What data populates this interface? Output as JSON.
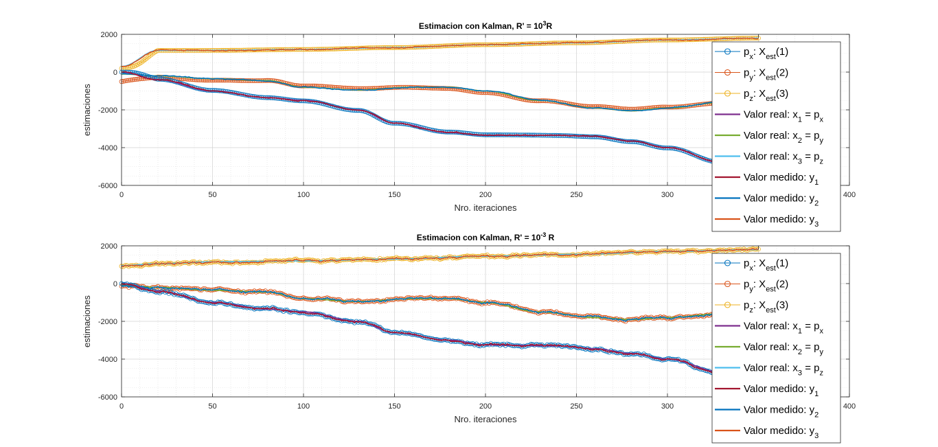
{
  "colors": {
    "c1": "#0072BD",
    "c2": "#D95319",
    "c3": "#EDB120",
    "c4": "#7E2F8E",
    "c5": "#77AC30",
    "c6": "#4DBEEE",
    "c7": "#A2142F"
  },
  "chart_data": [
    {
      "type": "line",
      "title": "Estimacion con Kalman, R' = 10",
      "title_sup": "3",
      "title_suffix": "R",
      "xlabel": "Nro. iteraciones",
      "ylabel": "estimaciones",
      "xlim": [
        0,
        400
      ],
      "ylim": [
        -6000,
        2000
      ],
      "xticks": [
        0,
        50,
        100,
        150,
        200,
        250,
        300,
        350,
        400
      ],
      "yticks": [
        -6000,
        -4000,
        -2000,
        0,
        2000
      ],
      "grid": true,
      "minor_grid": true,
      "legend_position": "right",
      "noise": 0.5,
      "estimate_bias": 1,
      "legend": [
        {
          "series": "px",
          "kind": "marker",
          "color": "c1",
          "base": "p",
          "base_sub": "x",
          "mid": ": X",
          "mid_sub": "est",
          "tail": "(1)",
          "tail_sub": ""
        },
        {
          "series": "py",
          "kind": "marker",
          "color": "c2",
          "base": "p",
          "base_sub": "y",
          "mid": ": X",
          "mid_sub": "est",
          "tail": "(2)",
          "tail_sub": ""
        },
        {
          "series": "pz",
          "kind": "marker",
          "color": "c3",
          "base": "p",
          "base_sub": "z",
          "mid": ": X",
          "mid_sub": "est",
          "tail": "(3)",
          "tail_sub": ""
        },
        {
          "series": "real1",
          "kind": "line",
          "color": "c4",
          "base": "Valor real: x",
          "base_sub": "1",
          "mid": " = p",
          "mid_sub": "x",
          "tail": "",
          "tail_sub": ""
        },
        {
          "series": "real2",
          "kind": "line",
          "color": "c5",
          "base": "Valor real: x",
          "base_sub": "2",
          "mid": " = p",
          "mid_sub": "y",
          "tail": "",
          "tail_sub": ""
        },
        {
          "series": "real3",
          "kind": "line",
          "color": "c6",
          "base": "Valor real: x",
          "base_sub": "3",
          "mid": " = p",
          "mid_sub": "z",
          "tail": "",
          "tail_sub": ""
        },
        {
          "series": "med1",
          "kind": "line",
          "color": "c7",
          "base": "Valor medido: y",
          "base_sub": "1",
          "mid": "",
          "mid_sub": "",
          "tail": "",
          "tail_sub": ""
        },
        {
          "series": "med2",
          "kind": "line",
          "color": "c1",
          "base": "Valor medido: y",
          "base_sub": "2",
          "mid": "",
          "mid_sub": "",
          "tail": "",
          "tail_sub": ""
        },
        {
          "series": "med3",
          "kind": "line",
          "color": "c2",
          "base": "Valor medido: y",
          "base_sub": "3",
          "mid": "",
          "mid_sub": "",
          "tail": "",
          "tail_sub": ""
        }
      ],
      "series": [
        {
          "name": "p_z",
          "data": [
            [
              0,
              300
            ],
            [
              20,
              1150
            ],
            [
              50,
              1150
            ],
            [
              100,
              1200
            ],
            [
              150,
              1300
            ],
            [
              200,
              1450
            ],
            [
              250,
              1550
            ],
            [
              300,
              1700
            ],
            [
              350,
              1800
            ]
          ]
        },
        {
          "name": "p_y",
          "data": [
            [
              0,
              -100
            ],
            [
              20,
              -200
            ],
            [
              50,
              -350
            ],
            [
              80,
              -450
            ],
            [
              100,
              -800
            ],
            [
              130,
              -950
            ],
            [
              160,
              -800
            ],
            [
              180,
              -800
            ],
            [
              200,
              -1000
            ],
            [
              230,
              -1500
            ],
            [
              260,
              -1900
            ],
            [
              280,
              -2050
            ],
            [
              300,
              -1900
            ],
            [
              330,
              -1600
            ],
            [
              350,
              -1550
            ]
          ]
        },
        {
          "name": "p_x",
          "data": [
            [
              0,
              0
            ],
            [
              20,
              -400
            ],
            [
              50,
              -1000
            ],
            [
              80,
              -1350
            ],
            [
              100,
              -1500
            ],
            [
              130,
              -2000
            ],
            [
              150,
              -2700
            ],
            [
              180,
              -3200
            ],
            [
              200,
              -3350
            ],
            [
              240,
              -3350
            ],
            [
              260,
              -3400
            ],
            [
              280,
              -3650
            ],
            [
              300,
              -4000
            ],
            [
              330,
              -4800
            ],
            [
              350,
              -5100
            ]
          ]
        }
      ]
    },
    {
      "type": "line",
      "title": "Estimacion con Kalman, R' = 10",
      "title_sup": "-3",
      "title_suffix": " R",
      "xlabel": "Nro. iteraciones",
      "ylabel": "estimaciones",
      "xlim": [
        0,
        400
      ],
      "ylim": [
        -6000,
        2000
      ],
      "xticks": [
        0,
        50,
        100,
        150,
        200,
        250,
        300,
        350,
        400
      ],
      "yticks": [
        -6000,
        -4000,
        -2000,
        0,
        2000
      ],
      "grid": true,
      "minor_grid": true,
      "legend_position": "right",
      "noise": 1,
      "estimate_bias": 0,
      "legend": [
        {
          "series": "px",
          "kind": "marker",
          "color": "c1",
          "base": "p",
          "base_sub": "x",
          "mid": ": X",
          "mid_sub": "est",
          "tail": "(1)",
          "tail_sub": ""
        },
        {
          "series": "py",
          "kind": "marker",
          "color": "c2",
          "base": "p",
          "base_sub": "y",
          "mid": ": X",
          "mid_sub": "est",
          "tail": "(2)",
          "tail_sub": ""
        },
        {
          "series": "pz",
          "kind": "marker",
          "color": "c3",
          "base": "p",
          "base_sub": "z",
          "mid": ": X",
          "mid_sub": "est",
          "tail": "(3)",
          "tail_sub": ""
        },
        {
          "series": "real1",
          "kind": "line",
          "color": "c4",
          "base": "Valor real: x",
          "base_sub": "1",
          "mid": " = p",
          "mid_sub": "x",
          "tail": "",
          "tail_sub": ""
        },
        {
          "series": "real2",
          "kind": "line",
          "color": "c5",
          "base": "Valor real: x",
          "base_sub": "2",
          "mid": " = p",
          "mid_sub": "y",
          "tail": "",
          "tail_sub": ""
        },
        {
          "series": "real3",
          "kind": "line",
          "color": "c6",
          "base": "Valor real: x",
          "base_sub": "3",
          "mid": " = p",
          "mid_sub": "z",
          "tail": "",
          "tail_sub": ""
        },
        {
          "series": "med1",
          "kind": "line",
          "color": "c7",
          "base": "Valor medido: y",
          "base_sub": "1",
          "mid": "",
          "mid_sub": "",
          "tail": "",
          "tail_sub": ""
        },
        {
          "series": "med2",
          "kind": "line",
          "color": "c1",
          "base": "Valor medido: y",
          "base_sub": "2",
          "mid": "",
          "mid_sub": "",
          "tail": "",
          "tail_sub": ""
        },
        {
          "series": "med3",
          "kind": "line",
          "color": "c2",
          "base": "Valor medido: y",
          "base_sub": "3",
          "mid": "",
          "mid_sub": "",
          "tail": "",
          "tail_sub": ""
        }
      ],
      "series": [
        {
          "name": "p_z",
          "data": [
            [
              0,
              950
            ],
            [
              20,
              1050
            ],
            [
              50,
              1150
            ],
            [
              100,
              1200
            ],
            [
              150,
              1300
            ],
            [
              200,
              1450
            ],
            [
              250,
              1550
            ],
            [
              300,
              1700
            ],
            [
              350,
              1800
            ]
          ]
        },
        {
          "name": "p_y",
          "data": [
            [
              0,
              -100
            ],
            [
              20,
              -200
            ],
            [
              50,
              -350
            ],
            [
              80,
              -450
            ],
            [
              100,
              -800
            ],
            [
              130,
              -950
            ],
            [
              160,
              -800
            ],
            [
              180,
              -800
            ],
            [
              200,
              -1000
            ],
            [
              230,
              -1500
            ],
            [
              260,
              -1800
            ],
            [
              280,
              -1900
            ],
            [
              300,
              -1800
            ],
            [
              330,
              -1600
            ],
            [
              350,
              -1550
            ]
          ]
        },
        {
          "name": "p_x",
          "data": [
            [
              0,
              0
            ],
            [
              20,
              -400
            ],
            [
              50,
              -1000
            ],
            [
              80,
              -1350
            ],
            [
              100,
              -1500
            ],
            [
              130,
              -2000
            ],
            [
              150,
              -2600
            ],
            [
              180,
              -3000
            ],
            [
              200,
              -3250
            ],
            [
              240,
              -3300
            ],
            [
              260,
              -3450
            ],
            [
              280,
              -3700
            ],
            [
              300,
              -4000
            ],
            [
              330,
              -4700
            ],
            [
              350,
              -5100
            ]
          ]
        }
      ]
    }
  ]
}
